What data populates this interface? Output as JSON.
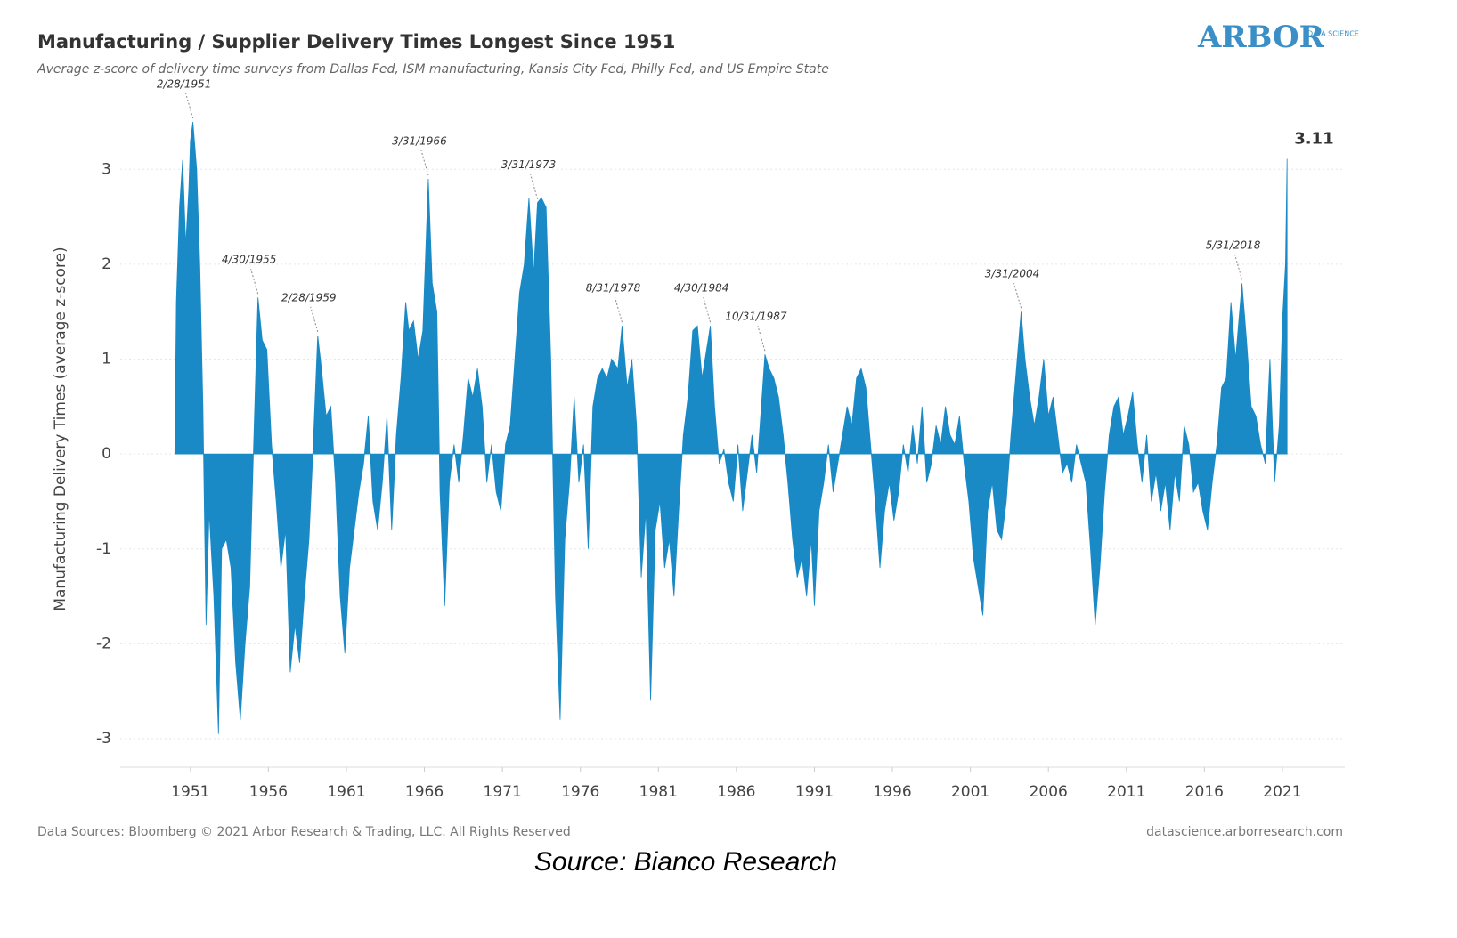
{
  "chart_data": {
    "type": "area",
    "title": "Manufacturing / Supplier Delivery Times Longest Since 1951",
    "subtitle": "Average z-score of delivery time surveys from Dallas Fed, ISM manufacturing, Kansis City Fed, Philly Fed, and US Empire State",
    "y_label": "Manufacturing Delivery Times (average z-score)",
    "logo": "ARBOR",
    "logo_sub": "DATA SCIENCE",
    "footer_left": "Data Sources: Bloomberg © 2021 Arbor Research & Trading, LLC. All Rights Reserved",
    "footer_right": "datascience.arborresearch.com",
    "source": "Source: Bianco Research",
    "xlim": [
      1946.5,
      2025
    ],
    "ylim": [
      -3.3,
      3.8
    ],
    "xticks": [
      1951,
      1956,
      1961,
      1966,
      1971,
      1976,
      1981,
      1986,
      1991,
      1996,
      2001,
      2006,
      2011,
      2016,
      2021
    ],
    "yticks": [
      -3,
      -2,
      -1,
      0,
      1,
      2,
      3
    ],
    "grid": true,
    "series": [
      {
        "name": "Manufacturing Delivery Times",
        "color": "#1a8ac6",
        "x": [
          1950.0,
          1950.1,
          1950.3,
          1950.5,
          1950.7,
          1950.9,
          1951.0,
          1951.16,
          1951.4,
          1951.6,
          1951.8,
          1952.0,
          1952.2,
          1952.5,
          1952.8,
          1953.0,
          1953.3,
          1953.6,
          1953.9,
          1954.2,
          1954.5,
          1954.8,
          1955.0,
          1955.33,
          1955.6,
          1955.9,
          1956.2,
          1956.5,
          1956.8,
          1957.1,
          1957.4,
          1957.7,
          1958.0,
          1958.3,
          1958.6,
          1958.9,
          1959.16,
          1959.4,
          1959.7,
          1960.0,
          1960.3,
          1960.6,
          1960.9,
          1961.2,
          1961.5,
          1961.8,
          1962.1,
          1962.4,
          1962.7,
          1963.0,
          1963.3,
          1963.6,
          1963.9,
          1964.2,
          1964.5,
          1964.8,
          1965.0,
          1965.3,
          1965.6,
          1965.9,
          1966.25,
          1966.5,
          1966.8,
          1967.0,
          1967.3,
          1967.6,
          1967.9,
          1968.2,
          1968.5,
          1968.8,
          1969.1,
          1969.4,
          1969.7,
          1970.0,
          1970.3,
          1970.6,
          1970.9,
          1971.2,
          1971.5,
          1971.8,
          1972.1,
          1972.4,
          1972.7,
          1973.0,
          1973.25,
          1973.5,
          1973.8,
          1974.1,
          1974.4,
          1974.7,
          1975.0,
          1975.3,
          1975.6,
          1975.9,
          1976.2,
          1976.5,
          1976.8,
          1977.1,
          1977.4,
          1977.7,
          1978.0,
          1978.4,
          1978.67,
          1979.0,
          1979.3,
          1979.6,
          1979.9,
          1980.2,
          1980.5,
          1980.8,
          1981.1,
          1981.4,
          1981.7,
          1982.0,
          1982.3,
          1982.6,
          1982.9,
          1983.2,
          1983.5,
          1983.8,
          1984.33,
          1984.6,
          1984.9,
          1985.2,
          1985.5,
          1985.8,
          1986.1,
          1986.4,
          1986.7,
          1987.0,
          1987.3,
          1987.6,
          1987.83,
          1988.1,
          1988.4,
          1988.7,
          1989.0,
          1989.3,
          1989.6,
          1989.9,
          1990.2,
          1990.5,
          1990.8,
          1991.0,
          1991.3,
          1991.6,
          1991.9,
          1992.2,
          1992.5,
          1992.8,
          1993.1,
          1993.4,
          1993.7,
          1994.0,
          1994.3,
          1994.6,
          1994.9,
          1995.2,
          1995.5,
          1995.8,
          1996.1,
          1996.4,
          1996.7,
          1997.0,
          1997.3,
          1997.6,
          1997.9,
          1998.2,
          1998.5,
          1998.8,
          1999.1,
          1999.4,
          1999.7,
          2000.0,
          2000.3,
          2000.6,
          2000.9,
          2001.2,
          2001.5,
          2001.8,
          2002.1,
          2002.4,
          2002.7,
          2003.0,
          2003.3,
          2003.6,
          2003.9,
          2004.25,
          2004.5,
          2004.8,
          2005.1,
          2005.4,
          2005.7,
          2006.0,
          2006.3,
          2006.6,
          2006.9,
          2007.2,
          2007.5,
          2007.8,
          2008.1,
          2008.4,
          2008.7,
          2009.0,
          2009.3,
          2009.6,
          2009.9,
          2010.2,
          2010.5,
          2010.8,
          2011.1,
          2011.4,
          2011.7,
          2012.0,
          2012.3,
          2012.6,
          2012.9,
          2013.2,
          2013.5,
          2013.8,
          2014.1,
          2014.4,
          2014.7,
          2015.0,
          2015.3,
          2015.6,
          2015.9,
          2016.2,
          2016.5,
          2016.8,
          2017.1,
          2017.4,
          2017.7,
          2018.0,
          2018.41,
          2018.7,
          2019.0,
          2019.3,
          2019.6,
          2019.9,
          2020.2,
          2020.5,
          2020.8,
          2021.0,
          2021.2,
          2021.3
        ],
        "values": [
          0,
          1.6,
          2.6,
          3.1,
          2.2,
          2.8,
          3.3,
          3.5,
          3.0,
          2.0,
          0.5,
          -1.8,
          -0.6,
          -1.5,
          -2.95,
          -1.0,
          -0.9,
          -1.2,
          -2.2,
          -2.8,
          -2.0,
          -1.4,
          -0.2,
          1.65,
          1.2,
          1.1,
          0.1,
          -0.5,
          -1.2,
          -0.8,
          -2.3,
          -1.8,
          -2.2,
          -1.5,
          -0.9,
          0.2,
          1.25,
          0.9,
          0.4,
          0.5,
          -0.3,
          -1.5,
          -2.1,
          -1.2,
          -0.8,
          -0.4,
          -0.1,
          0.4,
          -0.5,
          -0.8,
          -0.3,
          0.4,
          -0.8,
          0.2,
          0.8,
          1.6,
          1.3,
          1.4,
          1.0,
          1.3,
          2.9,
          1.8,
          1.5,
          -0.4,
          -1.6,
          -0.3,
          0.1,
          -0.3,
          0.2,
          0.8,
          0.6,
          0.9,
          0.5,
          -0.3,
          0.1,
          -0.4,
          -0.6,
          0.1,
          0.3,
          1.0,
          1.7,
          2.0,
          2.7,
          1.9,
          2.65,
          2.7,
          2.6,
          1.0,
          -1.5,
          -2.8,
          -0.9,
          -0.3,
          0.6,
          -0.3,
          0.1,
          -1.0,
          0.5,
          0.8,
          0.9,
          0.8,
          1.0,
          0.9,
          1.35,
          0.7,
          1.0,
          0.3,
          -1.3,
          -0.6,
          -2.6,
          -0.8,
          -0.5,
          -1.2,
          -0.9,
          -1.5,
          -0.6,
          0.2,
          0.6,
          1.3,
          1.35,
          0.8,
          1.35,
          0.5,
          -0.1,
          0.05,
          -0.3,
          -0.5,
          0.1,
          -0.6,
          -0.2,
          0.2,
          -0.2,
          0.5,
          1.05,
          0.9,
          0.8,
          0.6,
          0.2,
          -0.3,
          -0.9,
          -1.3,
          -1.1,
          -1.5,
          -0.9,
          -1.6,
          -0.6,
          -0.3,
          0.1,
          -0.4,
          -0.1,
          0.2,
          0.5,
          0.3,
          0.8,
          0.9,
          0.7,
          0.1,
          -0.5,
          -1.2,
          -0.6,
          -0.3,
          -0.7,
          -0.4,
          0.1,
          -0.2,
          0.3,
          -0.1,
          0.5,
          -0.3,
          -0.1,
          0.3,
          0.1,
          0.5,
          0.2,
          0.1,
          0.4,
          -0.1,
          -0.5,
          -1.1,
          -1.4,
          -1.7,
          -0.6,
          -0.3,
          -0.8,
          -0.9,
          -0.5,
          0.2,
          0.8,
          1.5,
          1.0,
          0.6,
          0.3,
          0.6,
          1.0,
          0.4,
          0.6,
          0.2,
          -0.2,
          -0.1,
          -0.3,
          0.1,
          -0.1,
          -0.3,
          -1.0,
          -1.8,
          -1.2,
          -0.4,
          0.2,
          0.5,
          0.6,
          0.2,
          0.4,
          0.65,
          0.1,
          -0.3,
          0.2,
          -0.5,
          -0.2,
          -0.6,
          -0.3,
          -0.8,
          -0.2,
          -0.5,
          0.3,
          0.1,
          -0.4,
          -0.3,
          -0.6,
          -0.8,
          -0.3,
          0.1,
          0.7,
          0.8,
          1.6,
          1.0,
          1.8,
          1.2,
          0.5,
          0.4,
          0.1,
          -0.1,
          1.0,
          -0.3,
          0.3,
          1.4,
          2.0,
          3.11
        ]
      }
    ],
    "annotations": [
      {
        "text": "2/28/1951",
        "x": 1951.16,
        "y": 3.5
      },
      {
        "text": "4/30/1955",
        "x": 1955.33,
        "y": 1.65
      },
      {
        "text": "2/28/1959",
        "x": 1959.16,
        "y": 1.25
      },
      {
        "text": "3/31/1966",
        "x": 1966.25,
        "y": 2.9
      },
      {
        "text": "3/31/1973",
        "x": 1973.25,
        "y": 2.65
      },
      {
        "text": "8/31/1978",
        "x": 1978.67,
        "y": 1.35
      },
      {
        "text": "4/30/1984",
        "x": 1984.33,
        "y": 1.35
      },
      {
        "text": "10/31/1987",
        "x": 1987.83,
        "y": 1.05
      },
      {
        "text": "3/31/2004",
        "x": 2004.25,
        "y": 1.5
      },
      {
        "text": "5/31/2018",
        "x": 2018.41,
        "y": 1.8
      }
    ]
  }
}
